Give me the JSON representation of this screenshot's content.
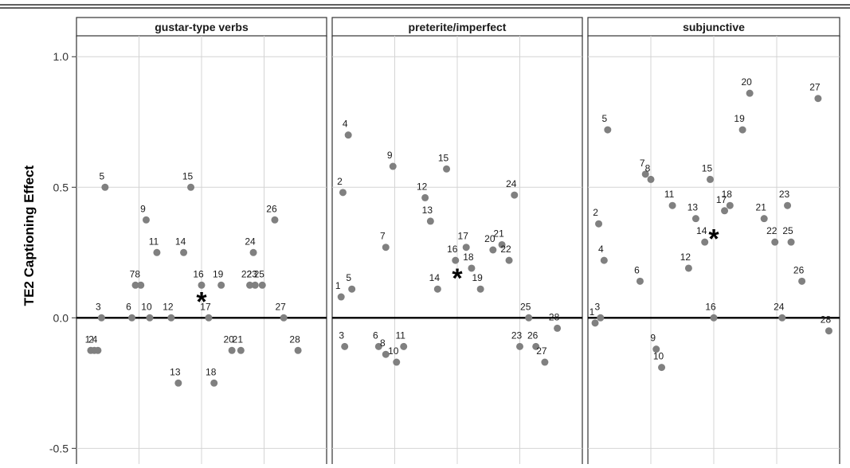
{
  "chart_data": {
    "type": "scatter",
    "ylabel": "TE2 Captioning Effect",
    "ylim": [
      -0.56,
      1.08
    ],
    "yticks": [
      1.0,
      0.5,
      0.0,
      -0.5
    ],
    "ytick_labels": [
      "1.0",
      "0.5",
      "0.0",
      "-0.5"
    ],
    "reference_line_y": 0.0,
    "grid": true,
    "point_color": "#808080",
    "panels": [
      {
        "title": "gustar-type verbs",
        "points": [
          {
            "label": "1",
            "x": 0.8,
            "y": -0.125
          },
          {
            "label": "2",
            "x": 1.0,
            "y": -0.125
          },
          {
            "label": "3",
            "x": 1.4,
            "y": 0.0
          },
          {
            "label": "4",
            "x": 1.2,
            "y": -0.125
          },
          {
            "label": "5",
            "x": 1.6,
            "y": 0.5
          },
          {
            "label": "6",
            "x": 3.1,
            "y": 0.0
          },
          {
            "label": "7",
            "x": 3.3,
            "y": 0.125
          },
          {
            "label": "8",
            "x": 3.6,
            "y": 0.125
          },
          {
            "label": "9",
            "x": 3.9,
            "y": 0.375
          },
          {
            "label": "10",
            "x": 4.1,
            "y": 0.0
          },
          {
            "label": "11",
            "x": 4.5,
            "y": 0.25
          },
          {
            "label": "12",
            "x": 5.3,
            "y": 0.0
          },
          {
            "label": "13",
            "x": 5.7,
            "y": -0.25
          },
          {
            "label": "14",
            "x": 6.0,
            "y": 0.25
          },
          {
            "label": "15",
            "x": 6.4,
            "y": 0.5
          },
          {
            "label": "16",
            "x": 7.0,
            "y": 0.125
          },
          {
            "label": "17",
            "x": 7.4,
            "y": 0.0
          },
          {
            "label": "18",
            "x": 7.7,
            "y": -0.25
          },
          {
            "label": "19",
            "x": 8.1,
            "y": 0.125
          },
          {
            "label": "20",
            "x": 8.7,
            "y": -0.125
          },
          {
            "label": "21",
            "x": 9.2,
            "y": -0.125
          },
          {
            "label": "22",
            "x": 9.7,
            "y": 0.125
          },
          {
            "label": "23",
            "x": 10.0,
            "y": 0.125
          },
          {
            "label": "24",
            "x": 9.9,
            "y": 0.25
          },
          {
            "label": "25",
            "x": 10.4,
            "y": 0.125
          },
          {
            "label": "26",
            "x": 11.1,
            "y": 0.375
          },
          {
            "label": "27",
            "x": 11.6,
            "y": 0.0
          },
          {
            "label": "28",
            "x": 12.4,
            "y": -0.125
          }
        ],
        "mean_marker": {
          "x": 7.0,
          "y": 0.07
        }
      },
      {
        "title": "preterite/imperfect",
        "points": [
          {
            "label": "1",
            "x": 0.5,
            "y": 0.08
          },
          {
            "label": "2",
            "x": 0.6,
            "y": 0.48
          },
          {
            "label": "3",
            "x": 0.7,
            "y": -0.11
          },
          {
            "label": "4",
            "x": 0.9,
            "y": 0.7
          },
          {
            "label": "5",
            "x": 1.1,
            "y": 0.11
          },
          {
            "label": "6",
            "x": 2.6,
            "y": -0.11
          },
          {
            "label": "7",
            "x": 3.0,
            "y": 0.27
          },
          {
            "label": "8",
            "x": 3.0,
            "y": -0.14
          },
          {
            "label": "9",
            "x": 3.4,
            "y": 0.58
          },
          {
            "label": "10",
            "x": 3.6,
            "y": -0.17
          },
          {
            "label": "11",
            "x": 4.0,
            "y": -0.11
          },
          {
            "label": "12",
            "x": 5.2,
            "y": 0.46
          },
          {
            "label": "13",
            "x": 5.5,
            "y": 0.37
          },
          {
            "label": "14",
            "x": 5.9,
            "y": 0.11
          },
          {
            "label": "15",
            "x": 6.4,
            "y": 0.57
          },
          {
            "label": "16",
            "x": 6.9,
            "y": 0.22
          },
          {
            "label": "17",
            "x": 7.5,
            "y": 0.27
          },
          {
            "label": "18",
            "x": 7.8,
            "y": 0.19
          },
          {
            "label": "19",
            "x": 8.3,
            "y": 0.11
          },
          {
            "label": "20",
            "x": 9.0,
            "y": 0.26
          },
          {
            "label": "21",
            "x": 9.5,
            "y": 0.28
          },
          {
            "label": "22",
            "x": 9.9,
            "y": 0.22
          },
          {
            "label": "23",
            "x": 10.5,
            "y": -0.11
          },
          {
            "label": "24",
            "x": 10.2,
            "y": 0.47
          },
          {
            "label": "25",
            "x": 11.0,
            "y": 0.0
          },
          {
            "label": "26",
            "x": 11.4,
            "y": -0.11
          },
          {
            "label": "27",
            "x": 11.9,
            "y": -0.17
          },
          {
            "label": "28",
            "x": 12.6,
            "y": -0.04
          }
        ],
        "mean_marker": {
          "x": 7.0,
          "y": 0.16
        }
      },
      {
        "title": "subjunctive",
        "points": [
          {
            "label": "1",
            "x": 0.4,
            "y": -0.02
          },
          {
            "label": "2",
            "x": 0.6,
            "y": 0.36
          },
          {
            "label": "3",
            "x": 0.7,
            "y": 0.0
          },
          {
            "label": "4",
            "x": 0.9,
            "y": 0.22
          },
          {
            "label": "5",
            "x": 1.1,
            "y": 0.72
          },
          {
            "label": "6",
            "x": 2.9,
            "y": 0.14
          },
          {
            "label": "7",
            "x": 3.2,
            "y": 0.55
          },
          {
            "label": "8",
            "x": 3.5,
            "y": 0.53
          },
          {
            "label": "9",
            "x": 3.8,
            "y": -0.12
          },
          {
            "label": "10",
            "x": 4.1,
            "y": -0.19
          },
          {
            "label": "11",
            "x": 4.7,
            "y": 0.43
          },
          {
            "label": "12",
            "x": 5.6,
            "y": 0.19
          },
          {
            "label": "13",
            "x": 6.0,
            "y": 0.38
          },
          {
            "label": "14",
            "x": 6.5,
            "y": 0.29
          },
          {
            "label": "15",
            "x": 6.8,
            "y": 0.53
          },
          {
            "label": "16",
            "x": 7.0,
            "y": 0.0
          },
          {
            "label": "17",
            "x": 7.6,
            "y": 0.41
          },
          {
            "label": "18",
            "x": 7.9,
            "y": 0.43
          },
          {
            "label": "19",
            "x": 8.6,
            "y": 0.72
          },
          {
            "label": "20",
            "x": 9.0,
            "y": 0.86
          },
          {
            "label": "21",
            "x": 9.8,
            "y": 0.38
          },
          {
            "label": "22",
            "x": 10.4,
            "y": 0.29
          },
          {
            "label": "23",
            "x": 11.1,
            "y": 0.43
          },
          {
            "label": "24",
            "x": 10.8,
            "y": 0.0
          },
          {
            "label": "25",
            "x": 11.3,
            "y": 0.29
          },
          {
            "label": "26",
            "x": 11.9,
            "y": 0.14
          },
          {
            "label": "27",
            "x": 12.8,
            "y": 0.84
          },
          {
            "label": "28",
            "x": 13.4,
            "y": -0.05
          }
        ],
        "mean_marker": {
          "x": 7.0,
          "y": 0.31
        }
      }
    ]
  }
}
